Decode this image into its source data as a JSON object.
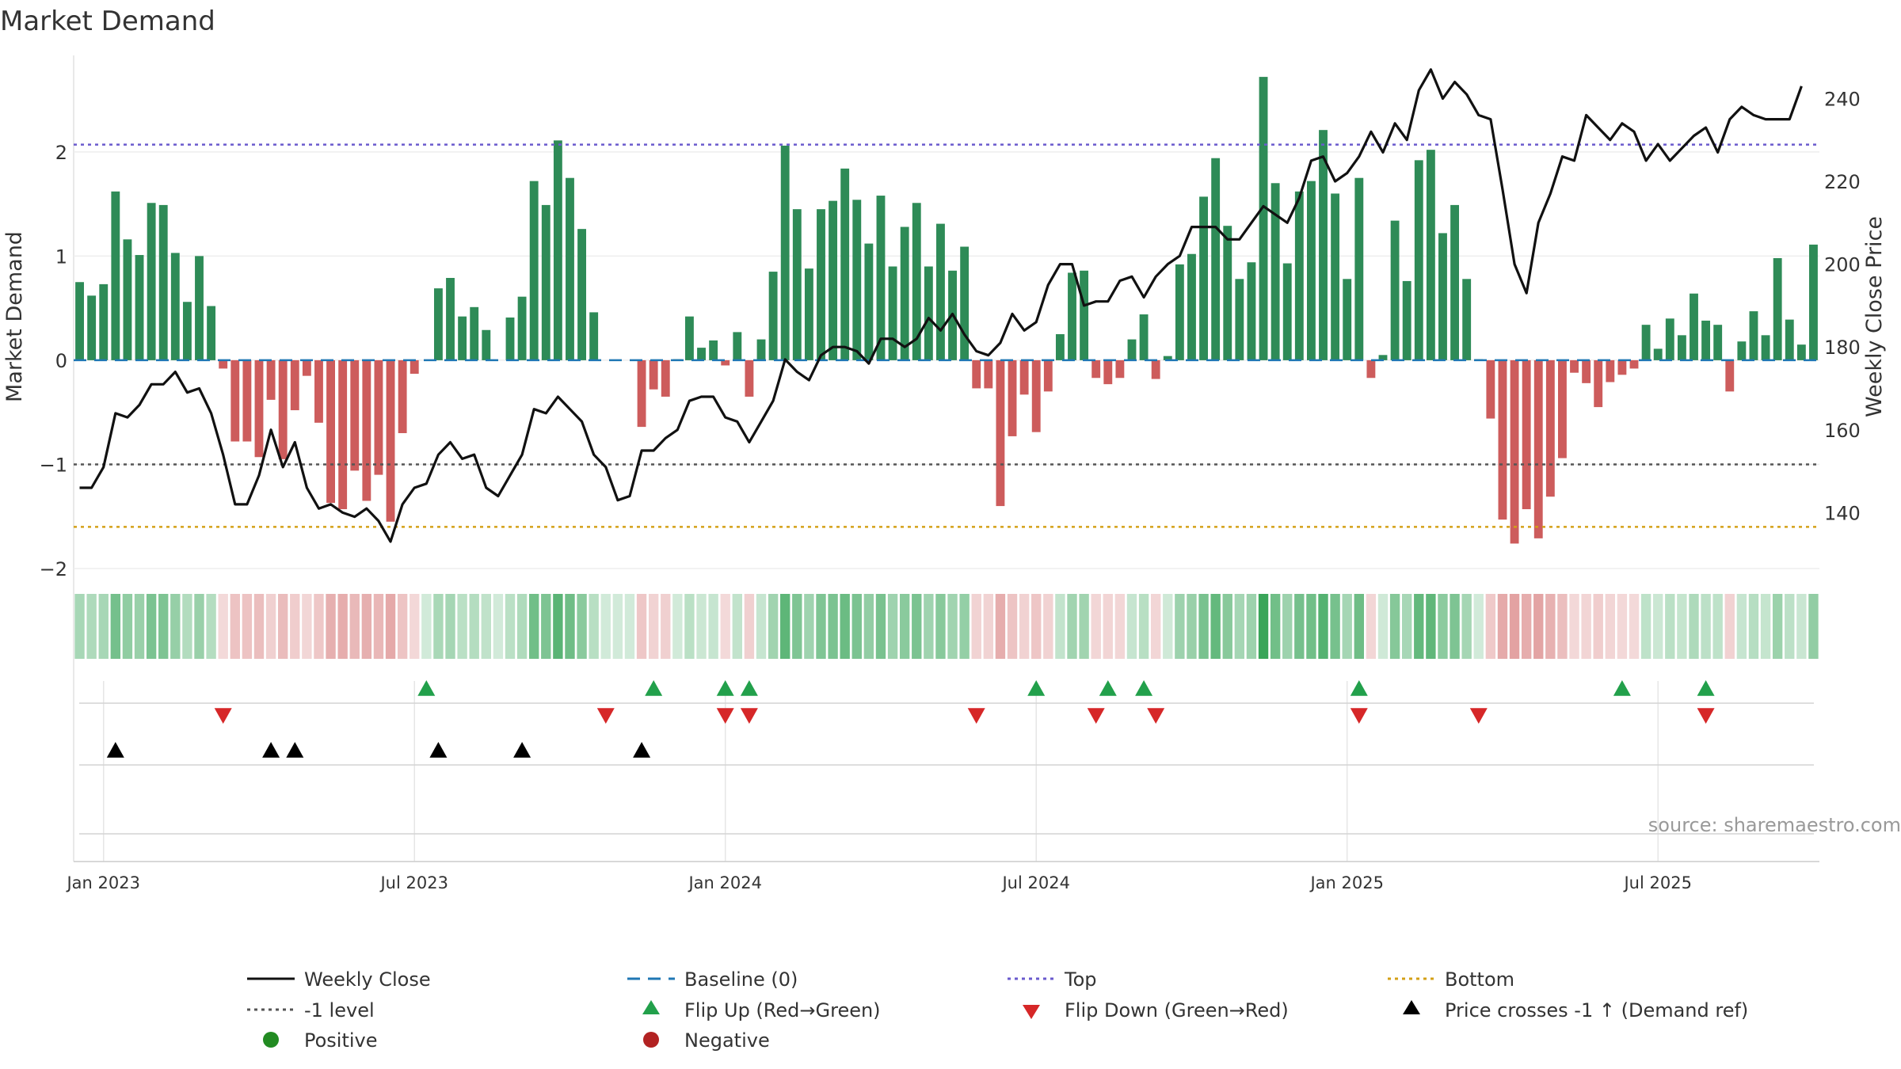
{
  "title": "Market Demand",
  "chart_data": {
    "type": "bar",
    "title": "Market Demand",
    "ylabel": "Market Demand",
    "y2label": "Weekly Close Price",
    "ylim": [
      -2.0,
      2.85
    ],
    "y2lim": [
      126.5,
      248.5
    ],
    "yticks": [
      -2,
      -1,
      0,
      1,
      2
    ],
    "y2ticks": [
      140,
      160,
      180,
      200,
      220,
      240
    ],
    "xticks": [
      {
        "label": "Jan 2023",
        "week": 2
      },
      {
        "label": "Jul 2023",
        "week": 28
      },
      {
        "label": "Jan 2024",
        "week": 54
      },
      {
        "label": "Jul 2024",
        "week": 80
      },
      {
        "label": "Jan 2025",
        "week": 106
      },
      {
        "label": "Jul 2025",
        "week": 132
      }
    ],
    "levels": {
      "top": 2.07,
      "minus_one": -1.0,
      "bottom": -1.6,
      "baseline": 0
    },
    "demand": [
      0.75,
      0.62,
      0.73,
      1.62,
      1.16,
      1.01,
      1.51,
      1.49,
      1.03,
      0.56,
      1.0,
      0.52,
      -0.08,
      -0.78,
      -0.78,
      -0.93,
      -0.38,
      -0.95,
      -0.48,
      -0.15,
      -0.6,
      -1.37,
      -1.43,
      -1.06,
      -1.35,
      -1.1,
      -1.55,
      -0.7,
      -0.13,
      0,
      0.69,
      0.79,
      0.42,
      0.51,
      0.29,
      0,
      0.41,
      0.61,
      1.72,
      1.49,
      2.11,
      1.75,
      1.26,
      0.46,
      0,
      0,
      0,
      -0.64,
      -0.28,
      -0.35,
      0.01,
      0.42,
      0.12,
      0.19,
      -0.05,
      0.27,
      -0.35,
      0.2,
      0.85,
      2.06,
      1.45,
      0.88,
      1.45,
      1.53,
      1.84,
      1.54,
      1.12,
      1.58,
      0.9,
      1.28,
      1.51,
      0.9,
      1.31,
      0.86,
      1.09,
      -0.27,
      -0.27,
      -1.4,
      -0.73,
      -0.33,
      -0.69,
      -0.3,
      0.25,
      0.84,
      0.86,
      -0.17,
      -0.23,
      -0.17,
      0.2,
      0.44,
      -0.18,
      0.04,
      0.92,
      1.02,
      1.57,
      1.94,
      1.29,
      0.78,
      0.94,
      2.72,
      1.7,
      0.93,
      1.62,
      1.72,
      2.21,
      1.6,
      0.78,
      1.75,
      -0.17,
      0.05,
      1.34,
      0.76,
      1.92,
      2.02,
      1.22,
      1.49,
      0.78,
      0.01,
      -0.56,
      -1.53,
      -1.76,
      -1.43,
      -1.71,
      -1.31,
      -0.94,
      -0.12,
      -0.22,
      -0.45,
      -0.21,
      -0.14,
      -0.08,
      0.34,
      0.11,
      0.4,
      0.24,
      0.64,
      0.38,
      0.34,
      -0.3,
      0.18,
      0.47,
      0.24,
      0.98,
      0.39,
      0.15,
      1.11
    ],
    "weekly_close": [
      146,
      146,
      151,
      164,
      163,
      166,
      171,
      171,
      174,
      169,
      170,
      164,
      154,
      142,
      142,
      149,
      160,
      151,
      157,
      146,
      141,
      142,
      140,
      139,
      141,
      138,
      133,
      142,
      146,
      147,
      154,
      157,
      153,
      154,
      146,
      144,
      149,
      154,
      165,
      164,
      168,
      165,
      162,
      154,
      151,
      143,
      144,
      155,
      155,
      158,
      160,
      167,
      168,
      168,
      163,
      162,
      157,
      162,
      167,
      177,
      174,
      172,
      178,
      180,
      180,
      179,
      176,
      182,
      182,
      180,
      182,
      187,
      184,
      188,
      183,
      179,
      178,
      181,
      188,
      184,
      186,
      195,
      200,
      200,
      190,
      191,
      191,
      196,
      197,
      192,
      197,
      200,
      202,
      209,
      209,
      209,
      206,
      206,
      210,
      214,
      212,
      210,
      216,
      225,
      226,
      220,
      222,
      226,
      232,
      227,
      234,
      230,
      242,
      247,
      240,
      244,
      241,
      236,
      235,
      218,
      200,
      193,
      210,
      217,
      226,
      225,
      236,
      233,
      230,
      234,
      232,
      225,
      229,
      225,
      228,
      231,
      233,
      227,
      235,
      238,
      236,
      235,
      235,
      235,
      243
    ],
    "flip_up_weeks": [
      29,
      48,
      54,
      56,
      80,
      86,
      89,
      107,
      129,
      136
    ],
    "flip_down_weeks": [
      12,
      44,
      54,
      56,
      75,
      85,
      90,
      107,
      117,
      136
    ],
    "price_cross_weeks": [
      3,
      16,
      18,
      30,
      37,
      47
    ]
  },
  "legend": {
    "weekly_close": "Weekly Close",
    "baseline": "Baseline (0)",
    "top": "Top",
    "bottom": "Bottom",
    "minus_one": "-1 level",
    "flip_up": "Flip Up (Red→Green)",
    "flip_down": "Flip Down (Green→Red)",
    "price_cross": "Price crosses -1 ↑ (Demand ref)",
    "positive": "Positive",
    "negative": "Negative"
  },
  "source": "source: sharemaestro.com",
  "colors": {
    "positive": "#2e8b57",
    "negative": "#cd5c5c",
    "close_line": "#111111",
    "baseline": "#1f77b4",
    "top": "#6a5acd",
    "minus_one": "#555555",
    "bottom": "#d4a017",
    "flip_up": "#22a04b",
    "flip_down": "#d62728",
    "cross": "#000000",
    "legend_positive": "#228b22",
    "legend_negative": "#b22222"
  }
}
